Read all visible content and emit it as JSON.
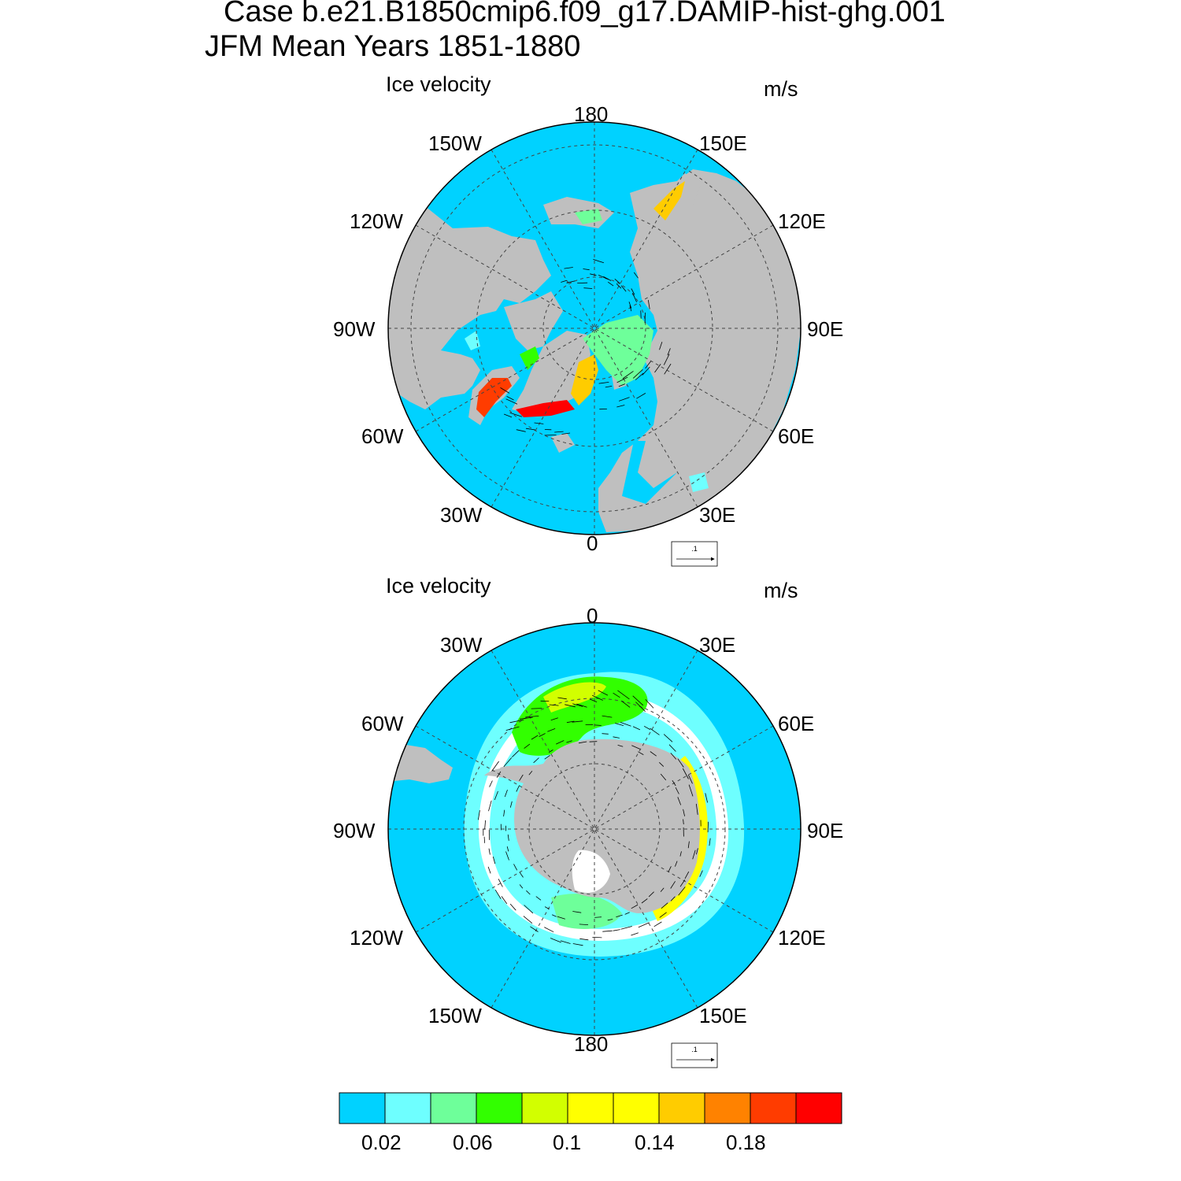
{
  "title": {
    "line1": "Case b.e21.B1850cmip6.f09_g17.DAMIP-hist-ghg.001",
    "line2": "JFM Mean   Years 1851-1880"
  },
  "panels": [
    {
      "hemisphere": "north",
      "variable": "Ice velocity",
      "units": "m/s",
      "lon_labels": {
        "top": "180",
        "bottom": "0",
        "left": "90W",
        "right": "90E",
        "ul_150": "150W",
        "ur_150": "150E",
        "ul_120": "120W",
        "ur_120": "120E",
        "ll_60": "60W",
        "lr_60": "60E",
        "ll_30": "30W",
        "lr_30": "30E"
      },
      "ref_vector": ".1"
    },
    {
      "hemisphere": "south",
      "variable": "Ice velocity",
      "units": "m/s",
      "lon_labels": {
        "top": "0",
        "bottom": "180",
        "left": "90W",
        "right": "90E",
        "ul_30": "30W",
        "ur_30": "30E",
        "ul_60": "60W",
        "ur_60": "60E",
        "ll_120": "120W",
        "lr_120": "120E",
        "ll_150": "150W",
        "lr_150": "150E"
      },
      "ref_vector": ".1"
    }
  ],
  "colorbar": {
    "colors": [
      "#00d2ff",
      "#6effff",
      "#6eff9a",
      "#32ff00",
      "#d2ff00",
      "#ffff00",
      "#ffff00",
      "#ffcc00",
      "#ff8200",
      "#ff3c00",
      "#ff0000"
    ],
    "tick_labels": [
      "0.02",
      "0.06",
      "0.1",
      "0.14",
      "0.18"
    ]
  },
  "colors": {
    "ocean": "#00d2ff",
    "land": "#bfbfbf",
    "open_water": "#ffffff"
  }
}
